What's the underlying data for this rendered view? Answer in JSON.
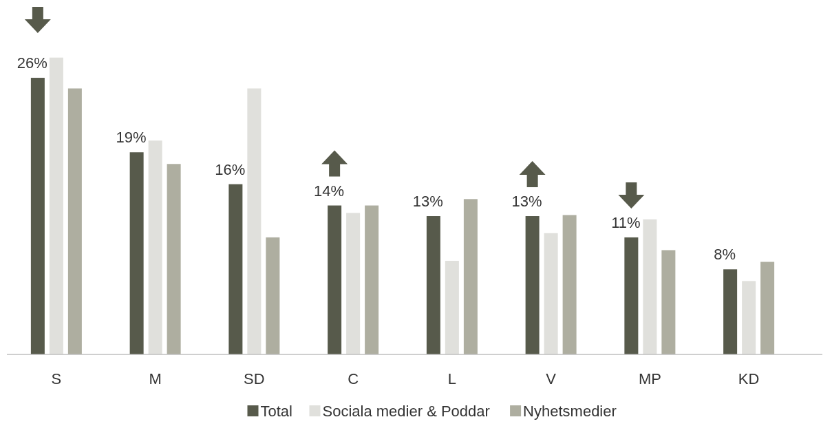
{
  "chart_data": {
    "type": "bar",
    "categories": [
      "S",
      "M",
      "SD",
      "C",
      "L",
      "V",
      "MP",
      "KD"
    ],
    "series": [
      {
        "name": "Total",
        "color": "#575a4b",
        "values": [
          26,
          19,
          16,
          14,
          13,
          13,
          11,
          8
        ],
        "value_labels": [
          "26%",
          "19%",
          "16%",
          "14%",
          "13%",
          "13%",
          "11%",
          "8%"
        ]
      },
      {
        "name": "Sociala medier & Poddar",
        "color": "#e0e0dc",
        "values": [
          27.9,
          20.1,
          25,
          13.3,
          8.8,
          11.4,
          12.7,
          6.9
        ]
      },
      {
        "name": "Nyhetsmedier",
        "color": "#aeaea0",
        "values": [
          25,
          17.9,
          11,
          14,
          14.6,
          13.1,
          9.8,
          8.7
        ]
      }
    ],
    "legend": "bottom",
    "grid": false
  }
}
